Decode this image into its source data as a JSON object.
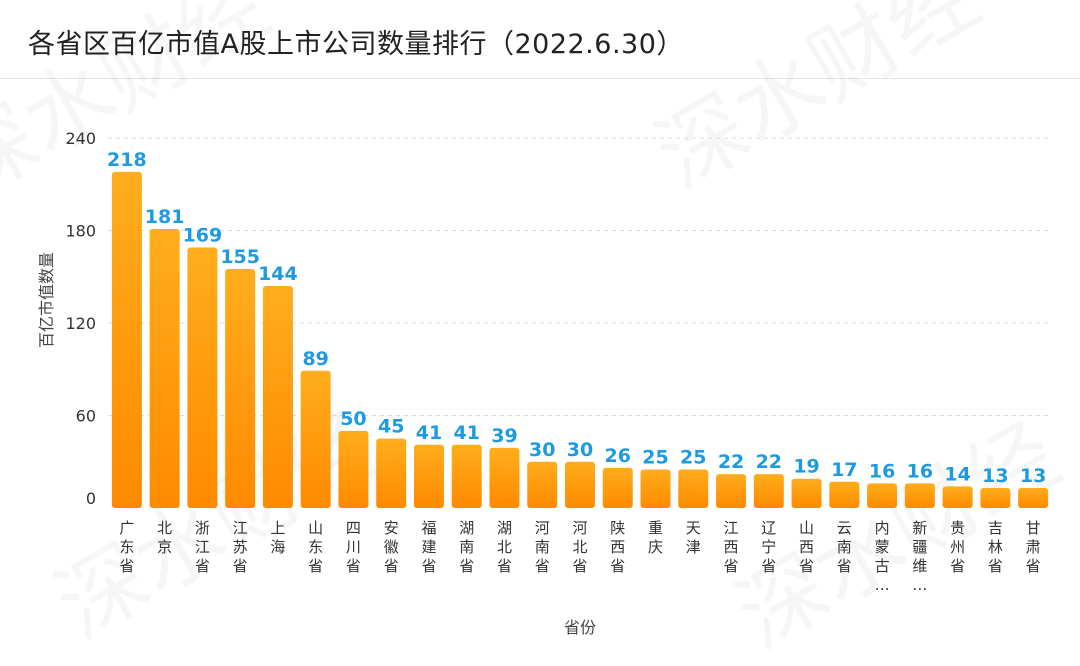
{
  "title": "各省区百亿市值A股上市公司数量排行（2022.6.30）",
  "watermark": "深水财经",
  "colors": {
    "bar_top": "#ffad1c",
    "bar_bottom": "#ff8a00",
    "value_label": "#1e9be0",
    "grid": "#dddddd"
  },
  "chart_data": {
    "type": "bar",
    "title": "各省区百亿市值A股上市公司数量排行（2022.6.30）",
    "xlabel": "省份",
    "ylabel": "百亿市值数量",
    "ylim": [
      0,
      240
    ],
    "yticks": [
      0,
      60,
      120,
      180,
      240
    ],
    "grid": true,
    "categories": [
      "广东省",
      "北京",
      "浙江省",
      "江苏省",
      "上海",
      "山东省",
      "四川省",
      "安徽省",
      "福建省",
      "湖南省",
      "湖北省",
      "河南省",
      "河北省",
      "陕西省",
      "重庆",
      "天津",
      "江西省",
      "辽宁省",
      "山西省",
      "云南省",
      "内蒙古…",
      "新疆维…",
      "贵州省",
      "吉林省",
      "甘肃省"
    ],
    "values": [
      218,
      181,
      169,
      155,
      144,
      89,
      50,
      45,
      41,
      41,
      39,
      30,
      30,
      26,
      25,
      25,
      22,
      22,
      19,
      17,
      16,
      16,
      14,
      13,
      13
    ]
  }
}
